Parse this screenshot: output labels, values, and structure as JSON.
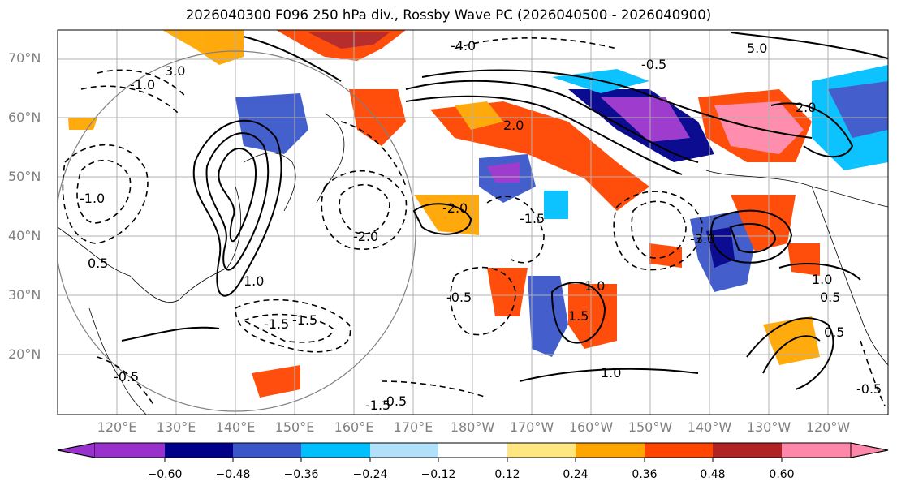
{
  "title": "2026040300 F096 250 hPa div., Rossby Wave PC (2026040500 - 2026040900)",
  "latitude_labels": [
    "70°N",
    "60°N",
    "50°N",
    "40°N",
    "30°N",
    "20°N"
  ],
  "longitude_labels": [
    "120°E",
    "130°E",
    "140°E",
    "150°E",
    "160°E",
    "170°E",
    "180°W",
    "170°W",
    "160°W",
    "150°W",
    "140°W",
    "130°W",
    "120°W"
  ],
  "colorbar": {
    "tick_labels": [
      "−0.60",
      "−0.48",
      "−0.36",
      "−0.24",
      "−0.12",
      "0.12",
      "0.24",
      "0.36",
      "0.48",
      "0.60"
    ],
    "colors": [
      "#9932cc",
      "#00008b",
      "#3a57c9",
      "#00bfff",
      "#b0e0fa",
      "#ffffff",
      "#ffe680",
      "#ffa500",
      "#ff4500",
      "#b22222",
      "#ff88aa"
    ]
  },
  "contour_labels": [
    "3.0",
    "1.0",
    "0.5",
    "-0.5",
    "-1.0",
    "-1.5",
    "-2.0",
    "2.0",
    "1.5",
    "-4.0",
    "5.0",
    "-3.0",
    "1.0",
    "-0.5",
    "0.5",
    "-1.5",
    "1.0",
    "-2.0",
    "-0.5",
    "-1.5",
    "1.0",
    "-0.5",
    "0.5",
    "-1.5",
    "2.0",
    "-1.0",
    "-0.5"
  ],
  "map_style": {
    "positive_contour_color": "#000000",
    "negative_contour_style": "dashed",
    "gridline_color": "#b0b0b0",
    "coastline_color": "#000000",
    "circle_color": "#808080"
  }
}
